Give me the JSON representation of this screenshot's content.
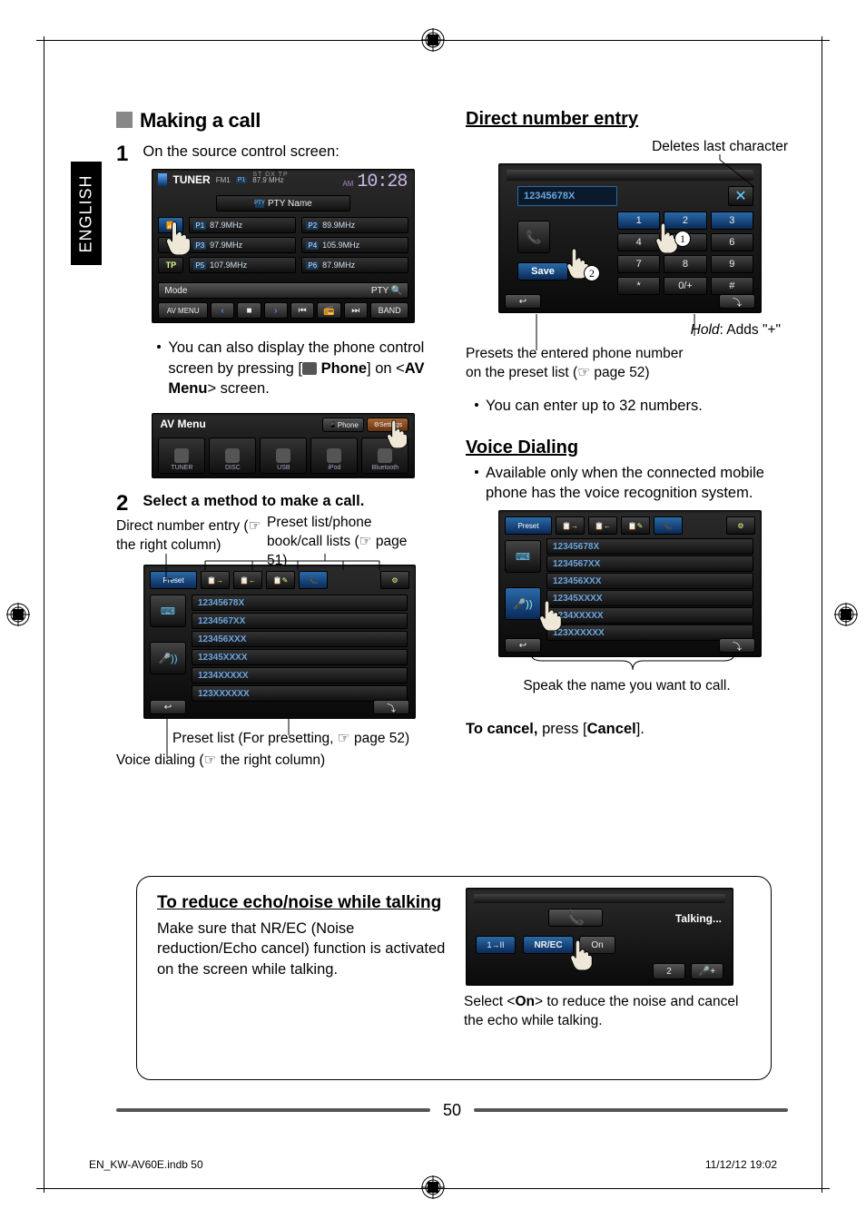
{
  "language_tab": "ENGLISH",
  "page_number": "50",
  "footer_left": "EN_KW-AV60E.indb   50",
  "footer_right": "11/12/12   19:02",
  "left": {
    "heading": "Making a call",
    "step1_num": "1",
    "step1_text": "On the source control screen:",
    "step1_note_pre": "You can also display the phone control screen by pressing [",
    "step1_note_btn": " Phone",
    "step1_note_mid": "] on <",
    "step1_note_bold": "AV Menu",
    "step1_note_post": "> screen.",
    "step2_num": "2",
    "step2_text": "Select a method to make a call.",
    "label_direct": "Direct number entry (☞ the right column)",
    "label_preset": "Preset list/phone book/call lists (☞ page 51)",
    "label_presetlist": "Preset list (For presetting, ☞ page 52)",
    "label_voice": "Voice dialing (☞ the right column)",
    "tuner": {
      "title": "TUNER",
      "band": "FM1",
      "freq_small": "87.9 MHz",
      "indicators": "ST   DX   TP",
      "time_am": "AM",
      "time": "10:28",
      "pty": "PTY Name",
      "presets": [
        {
          "n": "P1",
          "f": "87.9MHz"
        },
        {
          "n": "P2",
          "f": "89.9MHz"
        },
        {
          "n": "P3",
          "f": "97.9MHz"
        },
        {
          "n": "P4",
          "f": "105.9MHz"
        },
        {
          "n": "P5",
          "f": "107.9MHz"
        },
        {
          "n": "P6",
          "f": "87.9MHz"
        }
      ],
      "side_icon": "BT",
      "side_tp": "TP",
      "mode": "Mode",
      "pty_btn": "PTY",
      "avmenu": "AV MENU",
      "band_btn": "BAND"
    },
    "avmenu": {
      "title": "AV Menu",
      "phone": "Phone",
      "settings": "Settings",
      "icons": [
        "TUNER",
        "DISC",
        "USB",
        "iPod",
        "Bluetooth"
      ]
    },
    "preset_screen": {
      "toolbar_first": "Preset",
      "rows": [
        "12345678X",
        "1234567XX",
        "123456XXX",
        "12345XXXX",
        "1234XXXXX",
        "123XXXXXX"
      ]
    }
  },
  "right": {
    "heading_direct": "Direct number entry",
    "label_delete": "Deletes last character",
    "label_hold": "Hold",
    "label_hold2": ": Adds \"+\"",
    "label_preset_note": "Presets the entered phone number on the preset list (☞ page 52)",
    "bullet_enter": "You can enter up to 32 numbers.",
    "dialpad": {
      "entered": "12345678X",
      "save": "Save",
      "keys": [
        "1",
        "2",
        "3",
        "4",
        "5",
        "6",
        "7",
        "8",
        "9",
        "*",
        "0/+",
        "#"
      ]
    },
    "heading_voice": "Voice Dialing",
    "voice_note": "Available only when the connected mobile phone has the voice recognition system.",
    "voice_screen": {
      "toolbar_first": "Preset",
      "rows": [
        "12345678X",
        "1234567XX",
        "123456XXX",
        "12345XXXX",
        "1234XXXXX",
        "123XXXXXX"
      ]
    },
    "voice_caption": "Speak the name you want to call.",
    "cancel_pre": "To cancel,",
    "cancel_mid": " press [",
    "cancel_btn": "Cancel",
    "cancel_post": "]."
  },
  "box": {
    "heading": "To reduce echo/noise while talking",
    "line1": "Make sure that NR/EC (Noise reduction/Echo cancel) function is activated on the screen while talking.",
    "caption_pre": "Select <",
    "caption_bold": "On",
    "caption_post": "> to reduce the noise and cancel the echo while talking.",
    "nrec_screen": {
      "talking": "Talking...",
      "nrec": "NR/EC",
      "on": "On",
      "left_toggle": "1→II",
      "two": "2"
    }
  }
}
